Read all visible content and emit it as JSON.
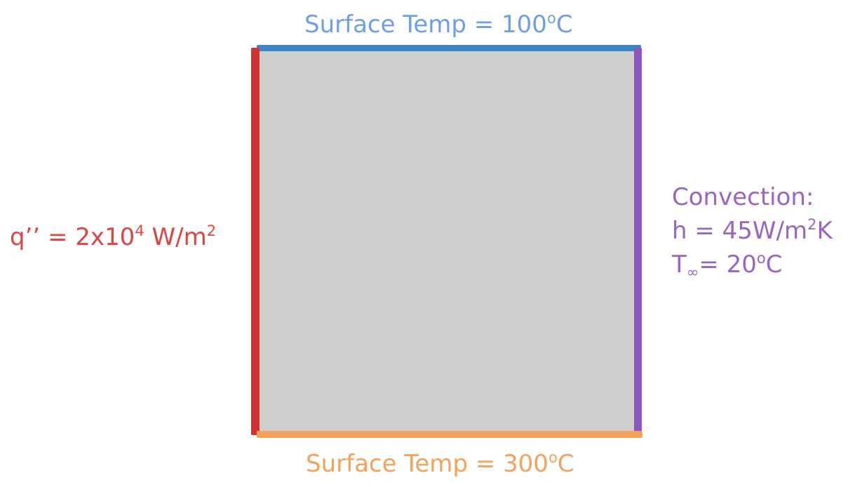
{
  "colors": {
    "domain_fill": "#d0cfce",
    "top_edge": "#3d85c6",
    "top_text": "#6d9eeb",
    "bottom_edge": "#f6a15a",
    "bottom_text": "#f6a15a",
    "left_edge": "#cc3333",
    "left_text": "#dd4444",
    "right_edge": "#8e57c0",
    "right_text": "#9a63c6"
  },
  "top_boundary": {
    "prefix": "Surface Temp = 100",
    "superscript": "o",
    "suffix": "C"
  },
  "bottom_boundary": {
    "prefix": "Surface Temp = 300",
    "superscript": "o",
    "suffix": "C"
  },
  "left_boundary": {
    "prefix": "q’’ = 2x10",
    "exponent": "4",
    "middle": " W/m",
    "unit_exponent": "2"
  },
  "right_boundary": {
    "title": "Convection:",
    "h_prefix": "h = 45W/m",
    "h_exponent": "2",
    "h_suffix": "K",
    "t_symbol": "T",
    "t_subscript": "∞",
    "t_value": "= 20",
    "t_superscript": "o",
    "t_suffix": "C"
  }
}
